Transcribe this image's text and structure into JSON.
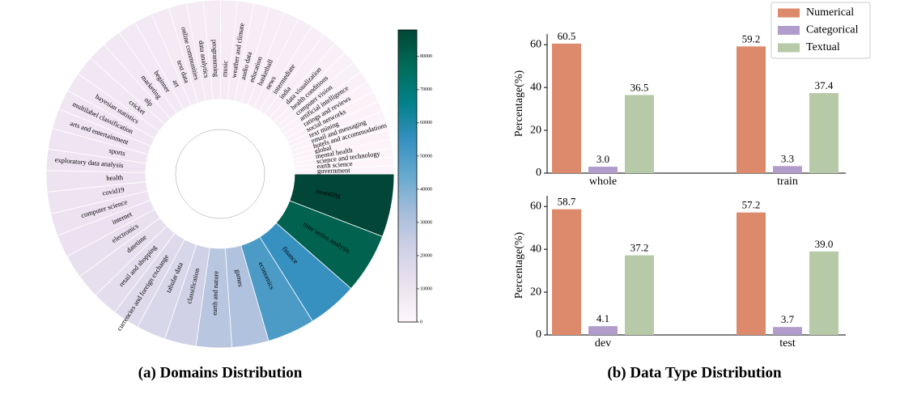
{
  "chart_data": [
    {
      "type": "radial_bar",
      "title": "(a) Domains Distribution",
      "angle_scale": "sqrt",
      "colormap": "PuBuGn",
      "clim": [
        0,
        88000
      ],
      "cticks": [
        0,
        10000,
        20000,
        30000,
        40000,
        50000,
        60000,
        70000,
        80000
      ],
      "categories": [
        "investing",
        "time series analysis",
        "finance",
        "economics",
        "games",
        "earth and nature",
        "classification",
        "tabular data",
        "currencies and foreign exchange",
        "retail and shopping",
        "datetime",
        "electronics",
        "internet",
        "computer science",
        "covid19",
        "health",
        "exploratory data analysis",
        "sports",
        "arts and entertainment",
        "multilabel classification",
        "bayesian statistics",
        "cricket",
        "nlp",
        "marketing",
        "beginner",
        "art",
        "text data",
        "online communities",
        "data analytics",
        "programming",
        "music",
        "weather and climate",
        "audio data",
        "education",
        "basketball",
        "news",
        "intermediate",
        "india",
        "data visualization",
        "health conditions",
        "computer vision",
        "artificial intelligence",
        "ratings and reviews",
        "social networks",
        "text mining",
        "email and messaging",
        "hotels and accommodations",
        "global",
        "mental health",
        "science and technology",
        "earth science",
        "government"
      ],
      "values": [
        88000,
        80000,
        55000,
        50000,
        30000,
        28000,
        22000,
        19000,
        16000,
        14000,
        13000,
        12000,
        11500,
        11000,
        10500,
        10000,
        10000,
        9500,
        9000,
        9000,
        8500,
        8500,
        8000,
        8000,
        7500,
        7500,
        7000,
        7000,
        6500,
        6500,
        6000,
        6000,
        5500,
        5500,
        5000,
        5000,
        4500,
        4500,
        4000,
        3500,
        3200,
        3000,
        2800,
        2600,
        2400,
        2200,
        2000,
        1900,
        1800,
        1700,
        1600,
        1500
      ]
    },
    {
      "type": "bar",
      "categories": [
        "whole",
        "train"
      ],
      "ylabel": "Percentage(%)",
      "ylim": [
        0,
        65
      ],
      "yticks": [
        0,
        20,
        40,
        60
      ],
      "legend": "upper right",
      "series": [
        {
          "name": "Numerical",
          "color": "#dd8a6c",
          "values": [
            60.5,
            59.2
          ]
        },
        {
          "name": "Categorical",
          "color": "#b29ccb",
          "values": [
            3.0,
            3.3
          ],
          "value_labels": [
            "3.0",
            "3.3"
          ]
        },
        {
          "name": "Textual",
          "color": "#b6caa8",
          "values": [
            36.5,
            37.4
          ]
        }
      ]
    },
    {
      "type": "bar",
      "title": "(b) Data Type Distribution",
      "categories": [
        "dev",
        "test"
      ],
      "ylabel": "Percentage(%)",
      "ylim": [
        0,
        65
      ],
      "yticks": [
        0,
        20,
        40,
        60
      ],
      "series": [
        {
          "color": "#dd8a6c",
          "values": [
            58.7,
            57.2
          ]
        },
        {
          "color": "#b29ccb",
          "values": [
            4.1,
            3.7
          ]
        },
        {
          "color": "#b6caa8",
          "values": [
            37.2,
            39.0
          ],
          "value_labels": [
            "37.2",
            "39.0"
          ]
        }
      ]
    }
  ]
}
